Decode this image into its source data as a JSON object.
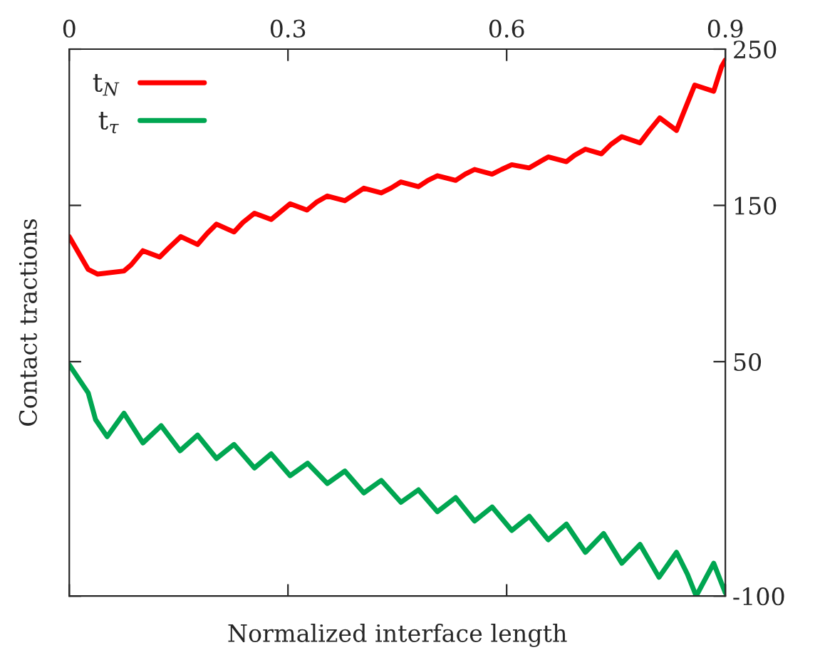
{
  "chart_data": {
    "type": "line",
    "xlabel": "Normalized interface length",
    "ylabel": "Contact tractions",
    "xlim": [
      0,
      0.9
    ],
    "xticks": [
      0,
      0.3,
      0.6,
      0.9
    ],
    "ylim": [
      -100,
      250
    ],
    "yticks": [
      -100,
      50,
      150,
      250
    ],
    "legend": "top left",
    "grid": false,
    "marker": "none",
    "line_style": "solid",
    "series": [
      {
        "name": "t$_{N}$",
        "color": "#ff0000",
        "x": [
          0,
          0.026,
          0.039,
          0.075,
          0.085,
          0.101,
          0.124,
          0.137,
          0.153,
          0.176,
          0.189,
          0.202,
          0.226,
          0.238,
          0.254,
          0.277,
          0.29,
          0.303,
          0.326,
          0.339,
          0.354,
          0.378,
          0.391,
          0.404,
          0.428,
          0.441,
          0.455,
          0.479,
          0.492,
          0.505,
          0.53,
          0.543,
          0.556,
          0.58,
          0.593,
          0.607,
          0.631,
          0.642,
          0.657,
          0.682,
          0.693,
          0.708,
          0.73,
          0.743,
          0.758,
          0.783,
          0.796,
          0.81,
          0.833,
          0.845,
          0.858,
          0.884,
          0.895,
          0.9
        ],
        "values": [
          130,
          109,
          106,
          108,
          112,
          121,
          117,
          123,
          130,
          125,
          132,
          138,
          133,
          139,
          145,
          141,
          146,
          151,
          147,
          152,
          156,
          153,
          157,
          161,
          158,
          161,
          165,
          162,
          166,
          169,
          166,
          170,
          173,
          170,
          173,
          176,
          174,
          177,
          181,
          178,
          182,
          186,
          183,
          189,
          194,
          190,
          198,
          206,
          198,
          212,
          227,
          223,
          239,
          243
        ]
      },
      {
        "name": "t$_{τ}$",
        "color": "#00a651",
        "x": [
          0,
          0.026,
          0.036,
          0.052,
          0.075,
          0.101,
          0.126,
          0.152,
          0.176,
          0.202,
          0.226,
          0.254,
          0.277,
          0.303,
          0.327,
          0.354,
          0.378,
          0.404,
          0.428,
          0.455,
          0.479,
          0.505,
          0.53,
          0.556,
          0.58,
          0.607,
          0.631,
          0.657,
          0.682,
          0.708,
          0.733,
          0.758,
          0.783,
          0.809,
          0.833,
          0.848,
          0.86,
          0.884,
          0.9
        ],
        "values": [
          48,
          30,
          13,
          2,
          17,
          -2,
          9,
          -7,
          3,
          -12,
          -3,
          -18,
          -9,
          -23,
          -15,
          -28,
          -20,
          -34,
          -26,
          -40,
          -32,
          -46,
          -37,
          -52,
          -43,
          -58,
          -49,
          -64,
          -54,
          -72,
          -60,
          -79,
          -67,
          -88,
          -72,
          -86,
          -100,
          -79,
          -98
        ]
      }
    ]
  }
}
